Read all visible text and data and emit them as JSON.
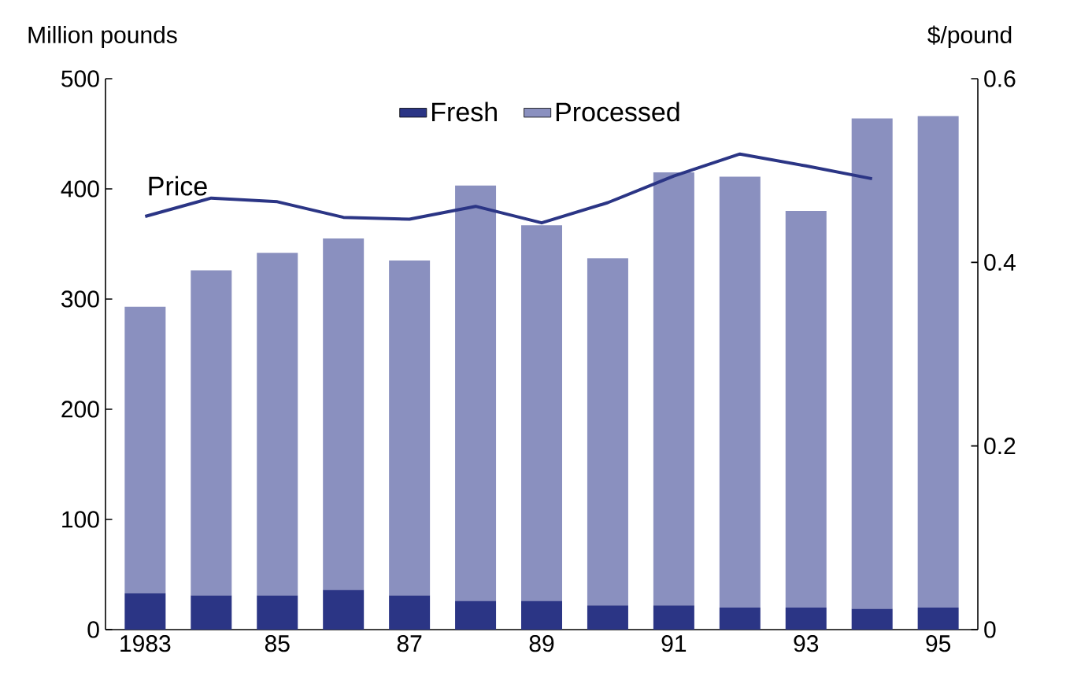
{
  "chart_data": {
    "type": "bar",
    "stacked": true,
    "ylabel": "Million pounds",
    "y2label": "$/pound",
    "categories": [
      "1983",
      null,
      "85",
      null,
      "87",
      null,
      "89",
      null,
      "91",
      null,
      "93",
      null,
      "95"
    ],
    "series": [
      {
        "name": "Fresh",
        "type": "bar",
        "color": "#2b3585",
        "values": [
          33,
          31,
          31,
          36,
          31,
          26,
          26,
          22,
          22,
          20,
          20,
          19,
          20
        ]
      },
      {
        "name": "Processed",
        "type": "bar",
        "color": "#8a90bf",
        "values": [
          260,
          295,
          311,
          319,
          304,
          377,
          341,
          315,
          393,
          391,
          360,
          445,
          446
        ]
      },
      {
        "name": "Price",
        "type": "line",
        "axis": "y2",
        "color": "#2b3585",
        "values": [
          0.45,
          0.47,
          0.466,
          0.449,
          0.447,
          0.461,
          0.443,
          0.465,
          0.494,
          0.518,
          0.505,
          0.491,
          null
        ]
      }
    ],
    "ylim": [
      0,
      500
    ],
    "yticks": [
      0,
      100,
      200,
      300,
      400,
      500
    ],
    "y2lim": [
      0,
      0.6
    ],
    "y2ticks": [
      0,
      0.2,
      0.4,
      0.6
    ],
    "legend": "top",
    "marker": "none",
    "line_style": "solid"
  }
}
